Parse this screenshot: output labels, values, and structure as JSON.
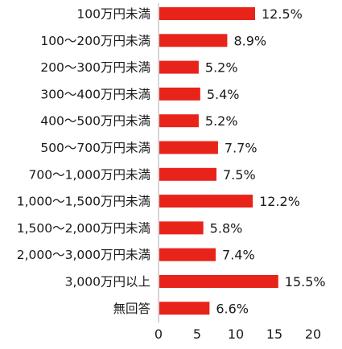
{
  "chart_data": {
    "type": "bar",
    "orientation": "horizontal",
    "categories": [
      "100万円未満",
      "100～200万円未満",
      "200～300万円未満",
      "300～400万円未満",
      "400～500万円未満",
      "500～700万円未満",
      "700～1,000万円未満",
      "1,000～1,500万円未満",
      "1,500～2,000万円未満",
      "2,000～3,000万円未満",
      "3,000万円以上",
      "無回答"
    ],
    "values": [
      12.5,
      8.9,
      5.2,
      5.4,
      5.2,
      7.7,
      7.5,
      12.2,
      5.8,
      7.4,
      15.5,
      6.6
    ],
    "value_labels": [
      "12.5%",
      "8.9%",
      "5.2%",
      "5.4%",
      "5.2%",
      "7.7%",
      "7.5%",
      "12.2%",
      "5.8%",
      "7.4%",
      "15.5%",
      "6.6%"
    ],
    "xlim": [
      0,
      20
    ],
    "xticks": [
      0,
      5,
      10,
      15,
      20
    ],
    "xtick_labels": [
      "0",
      "5",
      "10",
      "15",
      "20"
    ],
    "grid": false,
    "bar_color": "#e8231a",
    "axis_color": "#bbbbbb"
  }
}
